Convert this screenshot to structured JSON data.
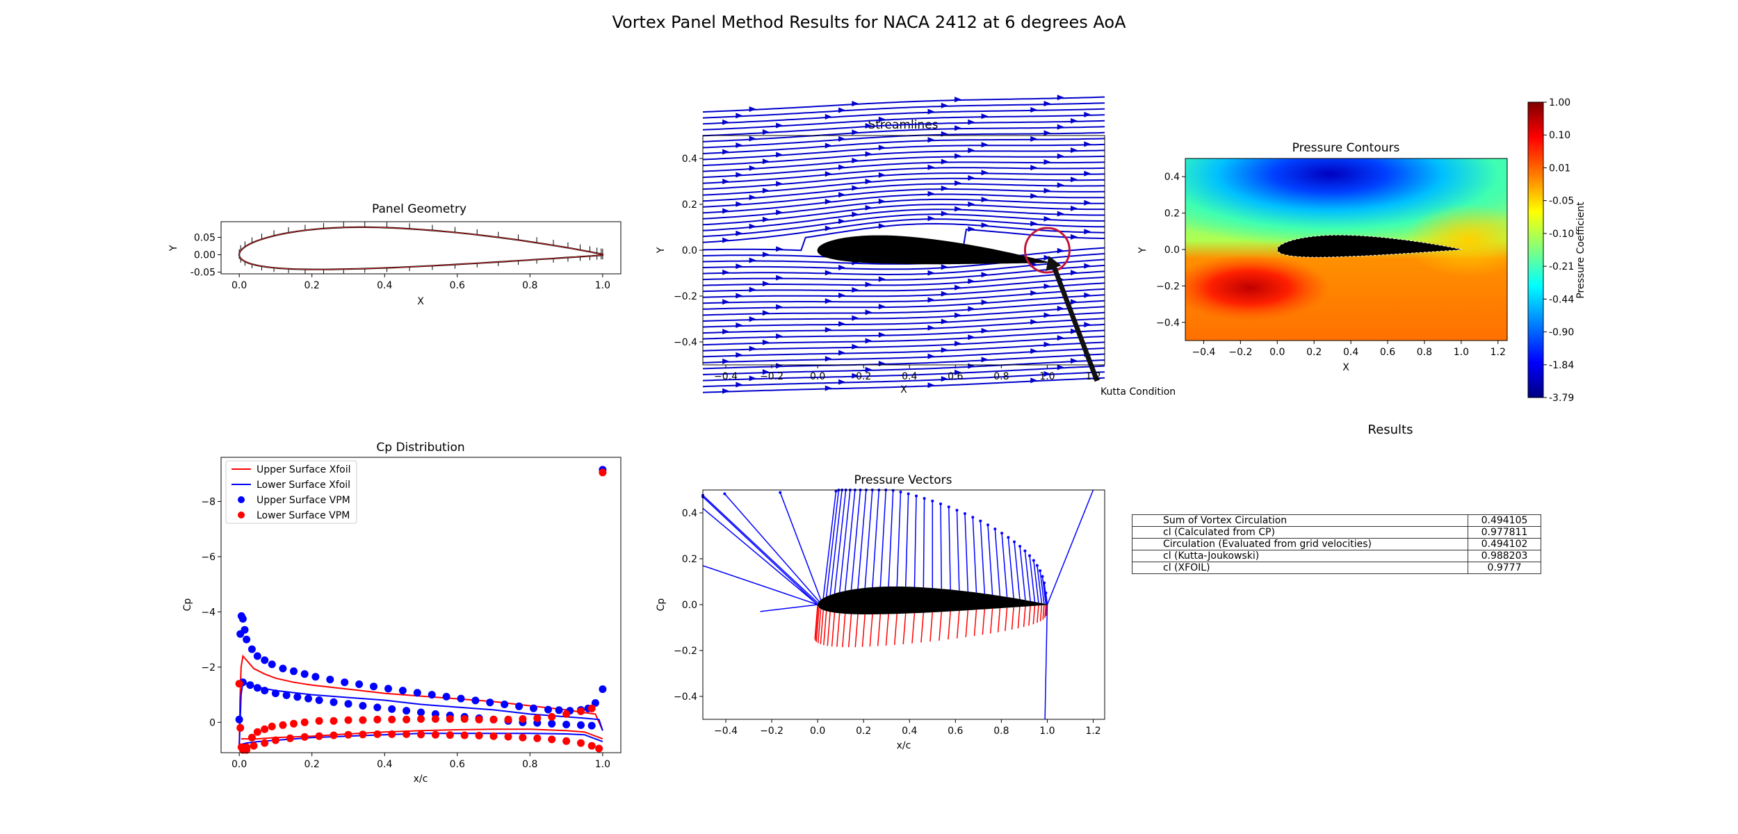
{
  "figure": {
    "suptitle": "Vortex Panel Method Results for NACA 2412 at 6 degrees AoA"
  },
  "chart_data": [
    {
      "id": "panel_geometry",
      "type": "line",
      "title": "Panel Geometry",
      "xlabel": "X",
      "ylabel": "Y",
      "xlim": [
        -0.05,
        1.05
      ],
      "ylim": [
        -0.055,
        0.095
      ],
      "xticks": [
        "0.0",
        "0.2",
        "0.4",
        "0.6",
        "0.8",
        "1.0"
      ],
      "yticks": [
        "0.05",
        "0.00",
        "-0.05"
      ],
      "airfoil": "NACA 2412",
      "panel_count": 100,
      "colors": {
        "outline": "#000000",
        "panels": "#d62728",
        "normals": "#000000"
      }
    },
    {
      "id": "streamlines",
      "type": "streamplot",
      "title": "Streamlines",
      "xlabel": "X",
      "ylabel": "Y",
      "xlim": [
        -0.5,
        1.25
      ],
      "ylim": [
        -0.5,
        0.5
      ],
      "xticks": [
        "−0.4",
        "−0.2",
        "0.0",
        "0.2",
        "0.4",
        "0.6",
        "0.8",
        "1.0",
        "1.2"
      ],
      "yticks": [
        "0.4",
        "0.2",
        "0.0",
        "−0.2",
        "−0.4"
      ],
      "angle_of_attack_deg": 6,
      "annotation": {
        "text": "Kutta Condition",
        "circle_center": [
          1.0,
          0.0
        ]
      },
      "colors": {
        "lines": "#0000cc",
        "circle": "#c0163a",
        "arrow": "#111111"
      }
    },
    {
      "id": "pressure_contours",
      "type": "heatmap",
      "title": "Pressure Contours",
      "xlabel": "X",
      "ylabel": "Y",
      "xlim": [
        -0.5,
        1.25
      ],
      "ylim": [
        -0.5,
        0.5
      ],
      "xticks": [
        "−0.4",
        "−0.2",
        "0.0",
        "0.2",
        "0.4",
        "0.6",
        "0.8",
        "1.0",
        "1.2"
      ],
      "yticks": [
        "0.4",
        "0.2",
        "0.0",
        "−0.2",
        "−0.4"
      ],
      "colorbar": {
        "label": "Pressure Coefficient",
        "ticks": [
          "1.00",
          "0.10",
          "0.01",
          "-0.05",
          "-0.10",
          "-0.21",
          "-0.44",
          "-0.90",
          "-1.84",
          "-3.79"
        ],
        "colormap": "jet"
      }
    },
    {
      "id": "cp_distribution",
      "type": "line",
      "title": "Cp Distribution",
      "xlabel": "x/c",
      "ylabel": "Cp",
      "xlim": [
        -0.05,
        1.05
      ],
      "ylim": [
        1.1,
        -9.6
      ],
      "inverted_y": true,
      "xticks": [
        "0.0",
        "0.2",
        "0.4",
        "0.6",
        "0.8",
        "1.0"
      ],
      "yticks": [
        "−8",
        "−6",
        "−4",
        "−2",
        "0"
      ],
      "legend": {
        "placement": "top-left",
        "entries": [
          "Upper Surface Xfoil",
          "Lower Surface Xfoil",
          "Upper Surface VPM",
          "Lower Surface VPM"
        ]
      },
      "series": [
        {
          "name": "Upper Surface Xfoil",
          "style": "line",
          "color": "#ff0000",
          "x": [
            0.0,
            0.002,
            0.005,
            0.01,
            0.02,
            0.04,
            0.07,
            0.1,
            0.15,
            0.2,
            0.3,
            0.4,
            0.5,
            0.6,
            0.7,
            0.8,
            0.9,
            0.95,
            0.98,
            1.0
          ],
          "y": [
            1.0,
            -0.8,
            -2.0,
            -2.4,
            -2.25,
            -1.95,
            -1.75,
            -1.6,
            -1.45,
            -1.35,
            -1.2,
            -1.05,
            -0.95,
            -0.85,
            -0.75,
            -0.6,
            -0.45,
            -0.35,
            -0.3,
            0.3
          ]
        },
        {
          "name": "Upper Surface Xfoil (lower branch)",
          "style": "line",
          "color": "#ff0000",
          "x": [
            0.005,
            0.02,
            0.05,
            0.1,
            0.2,
            0.3,
            0.4,
            0.5,
            0.6,
            0.7,
            0.8,
            0.9,
            0.95,
            1.0
          ],
          "y": [
            0.6,
            0.6,
            0.6,
            0.55,
            0.5,
            0.42,
            0.35,
            0.3,
            0.27,
            0.25,
            0.25,
            0.3,
            0.35,
            0.6
          ]
        },
        {
          "name": "Lower Surface Xfoil",
          "style": "line",
          "color": "#0000ff",
          "x": [
            0.0,
            0.005,
            0.01,
            0.03,
            0.06,
            0.1,
            0.2,
            0.3,
            0.4,
            0.5,
            0.6,
            0.7,
            0.8,
            0.9,
            0.95,
            0.99,
            1.0
          ],
          "y": [
            0.9,
            -1.0,
            -1.45,
            -1.35,
            -1.25,
            -1.15,
            -1.0,
            -0.9,
            -0.8,
            -0.65,
            -0.55,
            -0.45,
            -0.3,
            -0.2,
            -0.15,
            -0.1,
            0.3
          ]
        },
        {
          "name": "Lower Surface Xfoil (lower branch)",
          "style": "line",
          "color": "#0000ff",
          "x": [
            0.005,
            0.02,
            0.05,
            0.1,
            0.2,
            0.3,
            0.4,
            0.5,
            0.6,
            0.7,
            0.8,
            0.9,
            0.95,
            1.0
          ],
          "y": [
            0.8,
            0.75,
            0.7,
            0.65,
            0.55,
            0.5,
            0.45,
            0.4,
            0.4,
            0.4,
            0.4,
            0.42,
            0.45,
            0.7
          ]
        },
        {
          "name": "Upper Surface VPM",
          "style": "marker",
          "color": "#0000ff",
          "x": [
            0.0,
            0.003,
            0.006,
            0.01,
            0.015,
            0.02,
            0.035,
            0.05,
            0.07,
            0.09,
            0.12,
            0.15,
            0.18,
            0.21,
            0.25,
            0.29,
            0.33,
            0.37,
            0.41,
            0.45,
            0.49,
            0.53,
            0.57,
            0.61,
            0.65,
            0.69,
            0.73,
            0.77,
            0.81,
            0.85,
            0.88,
            0.91,
            0.94,
            0.96,
            0.98,
            1.0
          ],
          "y": [
            -0.1,
            -3.2,
            -3.85,
            -3.75,
            -3.35,
            -3.0,
            -2.65,
            -2.4,
            -2.25,
            -2.1,
            -1.95,
            -1.85,
            -1.75,
            -1.65,
            -1.55,
            -1.45,
            -1.38,
            -1.3,
            -1.22,
            -1.15,
            -1.07,
            -1.0,
            -0.93,
            -0.86,
            -0.79,
            -0.72,
            -0.65,
            -0.58,
            -0.51,
            -0.46,
            -0.44,
            -0.42,
            -0.45,
            -0.5,
            -0.7,
            -9.15
          ]
        },
        {
          "name": "Upper Surface VPM (lower row)",
          "style": "marker",
          "color": "#0000ff",
          "x": [
            0.01,
            0.03,
            0.05,
            0.07,
            0.1,
            0.13,
            0.16,
            0.19,
            0.22,
            0.26,
            0.3,
            0.34,
            0.38,
            0.42,
            0.46,
            0.5,
            0.54,
            0.58,
            0.62,
            0.66,
            0.7,
            0.74,
            0.78,
            0.82,
            0.86,
            0.9,
            0.94,
            0.97,
            1.0
          ],
          "y": [
            -1.45,
            -1.35,
            -1.25,
            -1.15,
            -1.05,
            -0.98,
            -0.92,
            -0.86,
            -0.8,
            -0.73,
            -0.67,
            -0.6,
            -0.54,
            -0.48,
            -0.42,
            -0.36,
            -0.3,
            -0.25,
            -0.2,
            -0.15,
            -0.1,
            -0.05,
            0.0,
            0.02,
            0.05,
            0.08,
            0.1,
            0.12,
            -1.2
          ]
        },
        {
          "name": "Lower Surface VPM",
          "style": "marker",
          "color": "#ff0000",
          "x": [
            0.0,
            0.003,
            0.006,
            0.01,
            0.02,
            0.035,
            0.05,
            0.07,
            0.09,
            0.12,
            0.15,
            0.18,
            0.22,
            0.26,
            0.3,
            0.34,
            0.38,
            0.42,
            0.46,
            0.5,
            0.54,
            0.58,
            0.62,
            0.66,
            0.7,
            0.74,
            0.78,
            0.82,
            0.86,
            0.9,
            0.94,
            0.97,
            1.0
          ],
          "y": [
            -1.4,
            0.2,
            0.9,
            1.0,
            0.9,
            0.55,
            0.35,
            0.25,
            0.15,
            0.1,
            0.05,
            0.0,
            -0.05,
            -0.05,
            -0.08,
            -0.08,
            -0.1,
            -0.1,
            -0.1,
            -0.12,
            -0.12,
            -0.12,
            -0.12,
            -0.1,
            -0.1,
            -0.1,
            -0.12,
            -0.15,
            -0.2,
            -0.3,
            -0.4,
            -0.5,
            -9.05
          ]
        },
        {
          "name": "Lower Surface VPM (lower row)",
          "style": "marker",
          "color": "#ff0000",
          "x": [
            0.02,
            0.04,
            0.07,
            0.1,
            0.14,
            0.18,
            0.22,
            0.26,
            0.3,
            0.34,
            0.38,
            0.42,
            0.46,
            0.5,
            0.54,
            0.58,
            0.62,
            0.66,
            0.7,
            0.74,
            0.78,
            0.82,
            0.86,
            0.9,
            0.94,
            0.97,
            0.99
          ],
          "y": [
            1.0,
            0.85,
            0.75,
            0.65,
            0.58,
            0.53,
            0.5,
            0.47,
            0.45,
            0.44,
            0.43,
            0.43,
            0.43,
            0.44,
            0.45,
            0.46,
            0.47,
            0.48,
            0.5,
            0.52,
            0.55,
            0.58,
            0.62,
            0.68,
            0.75,
            0.85,
            0.95
          ]
        }
      ]
    },
    {
      "id": "pressure_vectors",
      "type": "quiver",
      "title": "Pressure Vectors",
      "xlabel": "x/c",
      "ylabel": "Cp",
      "xlim": [
        -0.5,
        1.25
      ],
      "ylim": [
        -0.5,
        0.5
      ],
      "xticks": [
        "−0.4",
        "−0.2",
        "0.0",
        "0.2",
        "0.4",
        "0.6",
        "0.8",
        "1.0",
        "1.2"
      ],
      "yticks": [
        "0.4",
        "0.2",
        "0.0",
        "−0.2",
        "−0.4"
      ],
      "colors": {
        "suction": "#0000ff",
        "pressure": "#ff0000"
      }
    }
  ],
  "results": {
    "title": "Results",
    "rows": [
      {
        "label": "Sum of Vortex Circulation",
        "value": "0.494105"
      },
      {
        "label": "cl (Calculated from CP)",
        "value": "0.977811"
      },
      {
        "label": "Circulation (Evaluated from grid velocities)",
        "value": "0.494102"
      },
      {
        "label": "cl (Kutta-Joukowski)",
        "value": "0.988203"
      },
      {
        "label": "cl (XFOIL)",
        "value": "0.9777"
      }
    ]
  }
}
